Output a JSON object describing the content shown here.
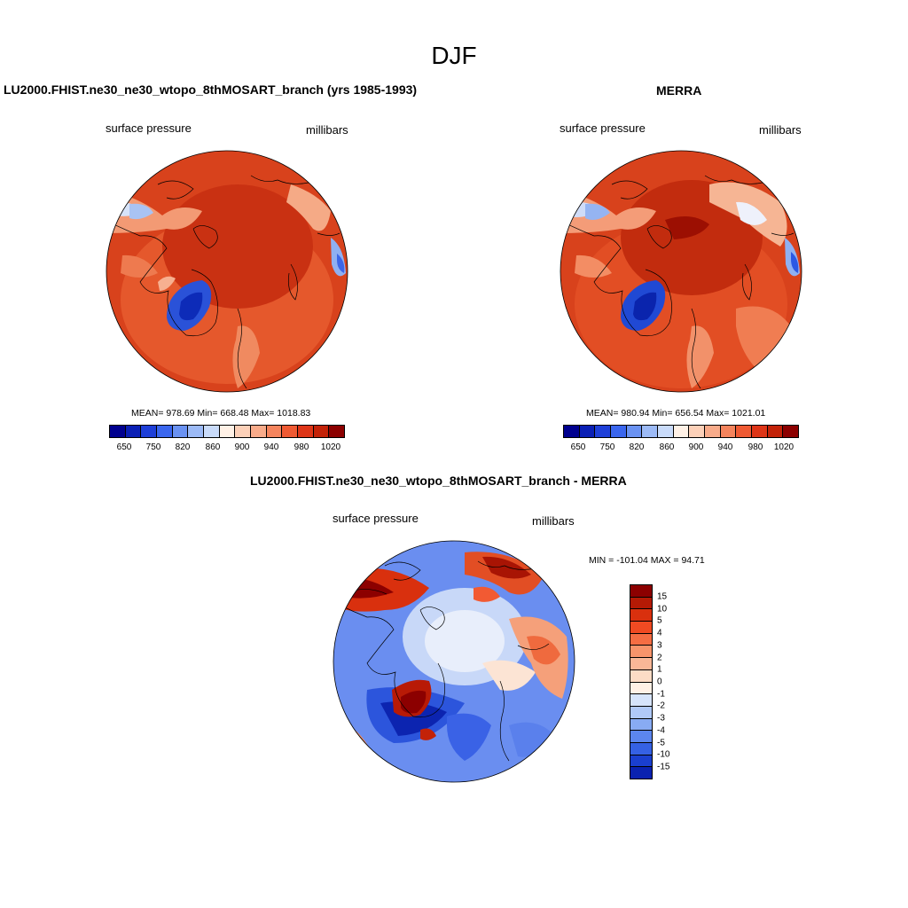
{
  "title": "DJF",
  "panels": [
    {
      "title": "LU2000.FHIST.ne30_ne30_wtopo_8thMOSART_branch (yrs 1985-1993)",
      "variable": "surface pressure",
      "units": "millibars",
      "stats": "MEAN= 978.69  Min= 668.48  Max= 1018.83"
    },
    {
      "title": "MERRA",
      "variable": "surface pressure",
      "units": "millibars",
      "stats": "MEAN= 980.94  Min= 656.54  Max= 1021.01"
    },
    {
      "title": "LU2000.FHIST.ne30_ne30_wtopo_8thMOSART_branch - MERRA",
      "variable": "surface pressure",
      "units": "millibars",
      "stats": "MIN = -101.04 MAX =  94.71"
    }
  ],
  "colorbar_abs": {
    "labels": [
      "650",
      "750",
      "820",
      "860",
      "900",
      "940",
      "980",
      "1020"
    ],
    "colors": [
      "#00008f",
      "#0a1fb5",
      "#1e3fd8",
      "#3a66ee",
      "#6a92f2",
      "#9cbaf6",
      "#c9dbfa",
      "#fff1e6",
      "#fcd0b8",
      "#f8ab8a",
      "#f5845d",
      "#ef5a33",
      "#de3517",
      "#c32208",
      "#8c0000"
    ]
  },
  "colorbar_diff": {
    "labels": [
      "15",
      "10",
      "5",
      "4",
      "3",
      "2",
      "1",
      "0",
      "-1",
      "-2",
      "-3",
      "-4",
      "-5",
      "-10",
      "-15"
    ],
    "colors": [
      "#8c0000",
      "#b41a05",
      "#d9300e",
      "#f04a22",
      "#f56d43",
      "#f7946b",
      "#f9b797",
      "#fcdcc6",
      "#fff1e6",
      "#d6e4fb",
      "#b0c9f7",
      "#88abf3",
      "#5c86ef",
      "#3561e4",
      "#1a3fcf",
      "#0a22b0"
    ]
  }
}
